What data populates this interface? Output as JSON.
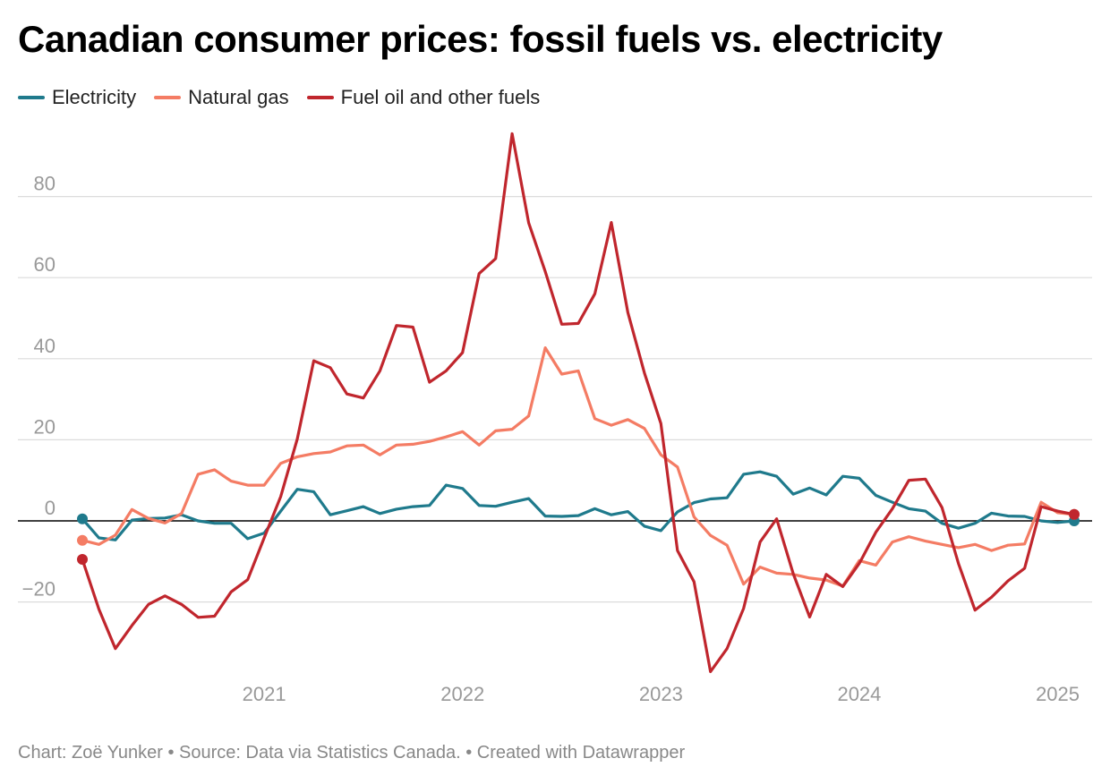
{
  "chart_data": {
    "type": "line",
    "title": "Canadian consumer prices: fossil fuels vs. electricity",
    "xlabel": "",
    "ylabel": "",
    "ylim": [
      -40,
      100
    ],
    "y_ticks": [
      -20,
      0,
      20,
      40,
      60,
      80
    ],
    "y_tick_labels": [
      "−20",
      "0",
      "20",
      "40",
      "60",
      "80"
    ],
    "x_ticks": [
      2021,
      2022,
      2023,
      2024,
      2025
    ],
    "x_tick_labels": [
      "2021",
      "2022",
      "2023",
      "2024",
      "2025"
    ],
    "x_start": 2020.0833,
    "x_step_months": 1,
    "legend_position": "top-left",
    "series": [
      {
        "name": "Electricity",
        "color": "#1f7a8c",
        "values": [
          0.5,
          -4.2,
          -4.7,
          0.2,
          0.6,
          0.7,
          1.5,
          0.0,
          -0.6,
          -0.6,
          -4.4,
          -3.0,
          2.4,
          7.8,
          7.2,
          1.5,
          2.5,
          3.5,
          1.8,
          2.9,
          3.5,
          3.8,
          8.8,
          8.0,
          3.8,
          3.6,
          4.6,
          5.5,
          1.2,
          1.1,
          1.3,
          3.0,
          1.5,
          2.3,
          -1.3,
          -2.4,
          2.2,
          4.5,
          5.4,
          5.7,
          11.5,
          12.1,
          11.0,
          6.6,
          8.1,
          6.4,
          11.0,
          10.5,
          6.3,
          4.6,
          3.0,
          2.4,
          -0.6,
          -1.8,
          -0.6,
          1.9,
          1.2,
          1.1,
          0.0,
          -0.4,
          0.0
        ]
      },
      {
        "name": "Natural gas",
        "color": "#f47c64",
        "values": [
          -4.8,
          -5.8,
          -3.5,
          2.8,
          0.6,
          -0.5,
          1.8,
          11.5,
          12.6,
          9.8,
          8.8,
          8.8,
          14.2,
          15.8,
          16.6,
          17.0,
          18.5,
          18.7,
          16.3,
          18.7,
          18.9,
          19.6,
          20.7,
          22.0,
          18.7,
          22.2,
          22.6,
          25.9,
          42.7,
          36.2,
          37.0,
          25.2,
          23.6,
          25.0,
          22.8,
          16.3,
          13.3,
          1.0,
          -3.6,
          -6.0,
          -15.6,
          -11.4,
          -12.9,
          -13.2,
          -14.1,
          -14.6,
          -16.1,
          -9.8,
          -10.9,
          -5.2,
          -3.9,
          -5.0,
          -5.8,
          -6.6,
          -5.8,
          -7.3,
          -6.0,
          -5.7,
          4.6,
          2.0,
          1.6
        ]
      },
      {
        "name": "Fuel oil and other fuels",
        "color": "#c0262d",
        "values": [
          -9.5,
          -21.8,
          -31.5,
          -25.8,
          -20.6,
          -18.5,
          -20.6,
          -23.8,
          -23.5,
          -17.5,
          -14.5,
          -4.2,
          6.0,
          20.2,
          39.5,
          37.8,
          31.3,
          30.3,
          37.0,
          48.2,
          47.8,
          34.2,
          37.0,
          41.5,
          61.0,
          64.7,
          95.5,
          73.5,
          61.5,
          48.5,
          48.7,
          56.0,
          73.6,
          51.4,
          36.5,
          24.0,
          -7.3,
          -15.0,
          -37.2,
          -31.5,
          -21.6,
          -5.2,
          0.5,
          -13.0,
          -23.7,
          -13.2,
          -16.2,
          -10.5,
          -2.8,
          3.0,
          10.0,
          10.3,
          3.3,
          -10.5,
          -22.0,
          -18.8,
          -14.8,
          -11.7,
          3.5,
          2.4,
          1.6
        ]
      }
    ]
  },
  "legend": [
    {
      "label": "Electricity",
      "color": "#1f7a8c"
    },
    {
      "label": "Natural gas",
      "color": "#f47c64"
    },
    {
      "label": "Fuel oil and other fuels",
      "color": "#c0262d"
    }
  ],
  "footer": "Chart: Zoë Yunker • Source: Data via Statistics Canada. • Created with Datawrapper"
}
